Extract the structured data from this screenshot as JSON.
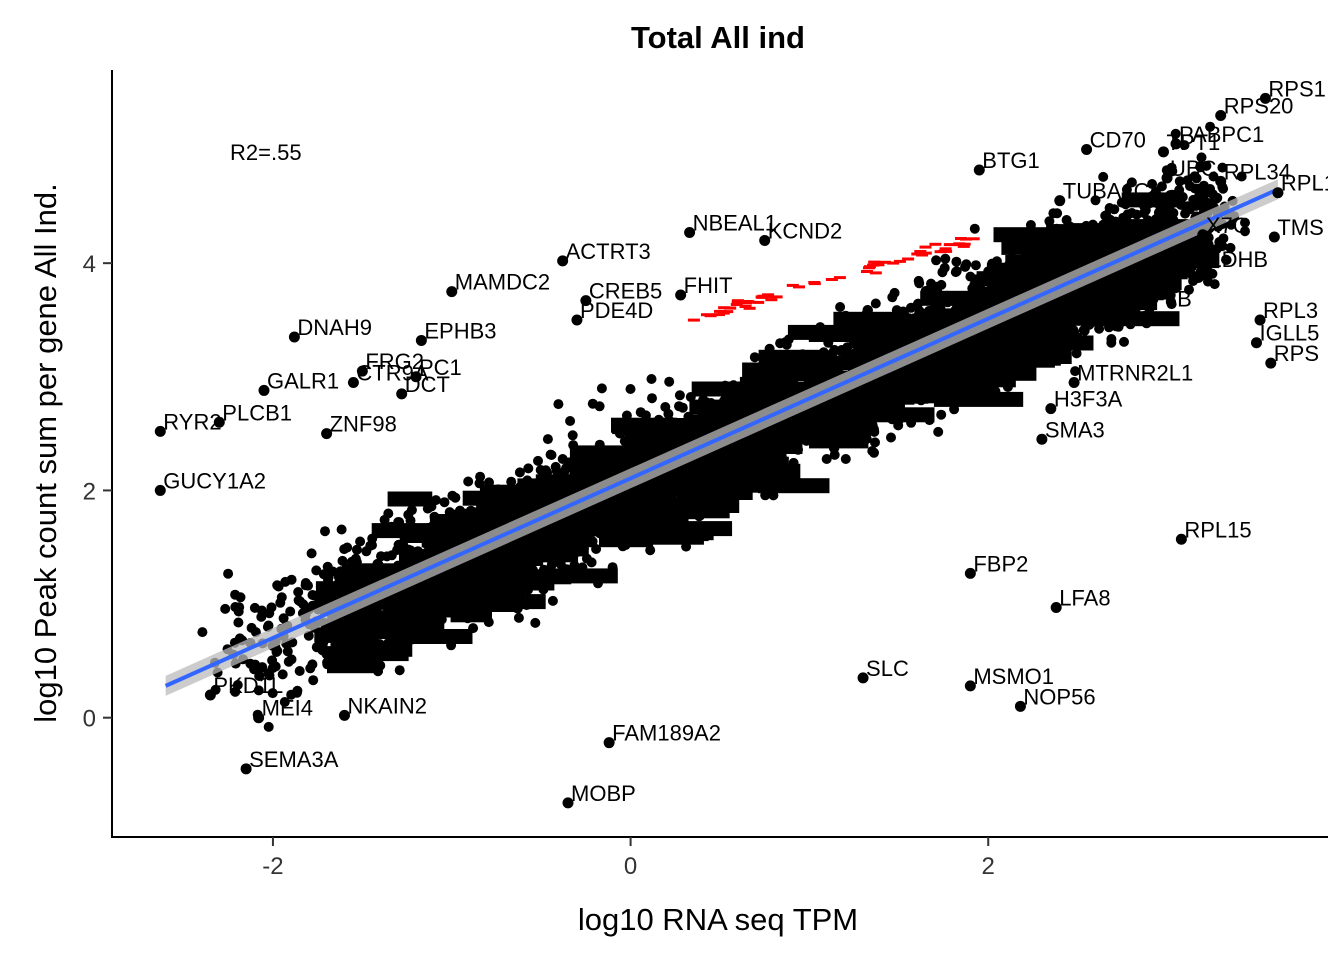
{
  "chart_data": {
    "type": "scatter",
    "title": "Total All ind",
    "xlabel": "log10 RNA seq TPM",
    "ylabel": "log10 Peak count sum per gene All Ind.",
    "xlim": [
      -2.9,
      3.9
    ],
    "ylim": [
      -1.05,
      5.7
    ],
    "x_ticks": [
      -2,
      0,
      2
    ],
    "y_ticks": [
      0,
      2,
      4
    ],
    "grid": false,
    "annotation": "R2=.55",
    "point_color": "#000000",
    "fit_line": {
      "x": [
        -2.6,
        3.62
      ],
      "y": [
        0.28,
        4.65
      ],
      "color": "#3366FF",
      "band_color": "#BBBBBB"
    },
    "highlight_color": "#FF0000",
    "labeled_points": [
      {
        "label": "RPS1",
        "x": 3.55,
        "y": 5.45
      },
      {
        "label": "RPS20",
        "x": 3.3,
        "y": 5.3
      },
      {
        "label": "PABPC1",
        "x": 3.05,
        "y": 5.05
      },
      {
        "label": "CD70",
        "x": 2.55,
        "y": 5.0
      },
      {
        "label": "TPT1",
        "x": 2.98,
        "y": 4.98
      },
      {
        "label": "BTG1",
        "x": 1.95,
        "y": 4.82
      },
      {
        "label": "UBC",
        "x": 3.0,
        "y": 4.75
      },
      {
        "label": "RPL34",
        "x": 3.3,
        "y": 4.72
      },
      {
        "label": "RPL1",
        "x": 3.62,
        "y": 4.62
      },
      {
        "label": "TUBA1C",
        "x": 2.4,
        "y": 4.55
      },
      {
        "label": "NBEAL1",
        "x": 0.33,
        "y": 4.27
      },
      {
        "label": "KCND2",
        "x": 0.75,
        "y": 4.2
      },
      {
        "label": "X7C",
        "x": 3.2,
        "y": 4.25
      },
      {
        "label": "TMS",
        "x": 3.6,
        "y": 4.23
      },
      {
        "label": "ACTRT3",
        "x": -0.38,
        "y": 4.02
      },
      {
        "label": "LDHB",
        "x": 3.22,
        "y": 3.95
      },
      {
        "label": "MAMDC2",
        "x": -1.0,
        "y": 3.75
      },
      {
        "label": "CREB5",
        "x": -0.25,
        "y": 3.67
      },
      {
        "label": "FHIT",
        "x": 0.28,
        "y": 3.72
      },
      {
        "label": "GF3B",
        "x": 2.8,
        "y": 3.6
      },
      {
        "label": "PDE4D",
        "x": -0.3,
        "y": 3.5
      },
      {
        "label": "RPL3",
        "x": 3.52,
        "y": 3.5
      },
      {
        "label": "EPHB3",
        "x": -1.17,
        "y": 3.32
      },
      {
        "label": "DNAH9",
        "x": -1.88,
        "y": 3.35
      },
      {
        "label": "IGLL5",
        "x": 3.5,
        "y": 3.3
      },
      {
        "label": "RPS",
        "x": 3.58,
        "y": 3.12
      },
      {
        "label": "FRG2",
        "x": -1.5,
        "y": 3.05
      },
      {
        "label": "PC1",
        "x": -1.2,
        "y": 3.0
      },
      {
        "label": "GALR1",
        "x": -2.05,
        "y": 2.88
      },
      {
        "label": "DCT",
        "x": -1.28,
        "y": 2.85
      },
      {
        "label": "MTRNR2L1",
        "x": 2.48,
        "y": 2.95
      },
      {
        "label": "CTR9A",
        "x": -1.55,
        "y": 2.95
      },
      {
        "label": "PLCB1",
        "x": -2.3,
        "y": 2.6
      },
      {
        "label": "RYR2",
        "x": -2.63,
        "y": 2.52
      },
      {
        "label": "H3F3A",
        "x": 2.35,
        "y": 2.72
      },
      {
        "label": "ZNF98",
        "x": -1.7,
        "y": 2.5
      },
      {
        "label": "SMA3",
        "x": 2.3,
        "y": 2.45
      },
      {
        "label": "GUCY1A2",
        "x": -2.63,
        "y": 2.0
      },
      {
        "label": "RPL15",
        "x": 3.08,
        "y": 1.57
      },
      {
        "label": "FBP2",
        "x": 1.9,
        "y": 1.27
      },
      {
        "label": "LFA8",
        "x": 2.38,
        "y": 0.97
      },
      {
        "label": "PKD1L",
        "x": -2.35,
        "y": 0.2
      },
      {
        "label": "MEI4",
        "x": -2.08,
        "y": 0.0
      },
      {
        "label": "NKAIN2",
        "x": -1.6,
        "y": 0.02
      },
      {
        "label": "MSMO1",
        "x": 1.9,
        "y": 0.28
      },
      {
        "label": "NOP56",
        "x": 2.18,
        "y": 0.1
      },
      {
        "label": "SLC",
        "x": 1.3,
        "y": 0.35
      },
      {
        "label": "FAM189A2",
        "x": -0.12,
        "y": -0.22
      },
      {
        "label": "SEMA3A",
        "x": -2.15,
        "y": -0.45
      },
      {
        "label": "MOBP",
        "x": -0.35,
        "y": -0.75
      }
    ]
  }
}
